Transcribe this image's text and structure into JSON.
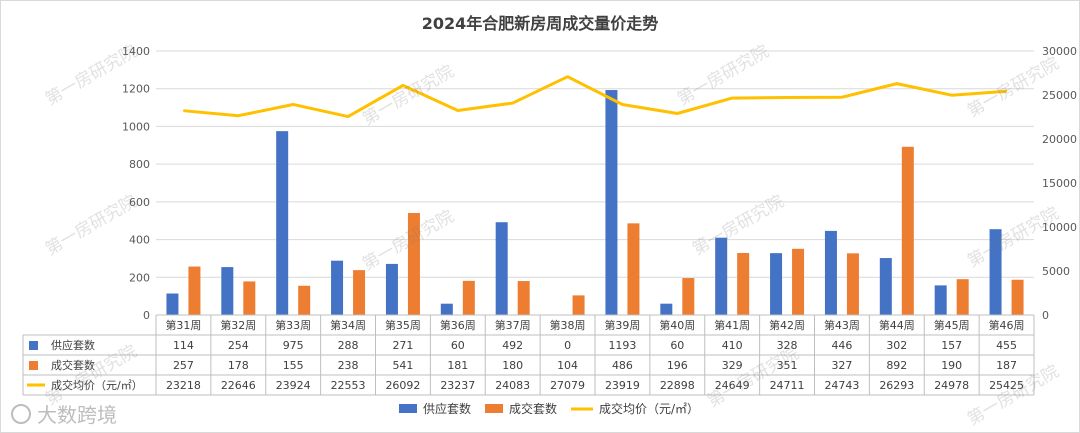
{
  "chart_data": {
    "type": "bar+line",
    "title": "2024年合肥新房周成交量价走势",
    "categories": [
      "第31周",
      "第32周",
      "第33周",
      "第34周",
      "第35周",
      "第36周",
      "第37周",
      "第38周",
      "第39周",
      "第40周",
      "第41周",
      "第42周",
      "第43周",
      "第44周",
      "第45周",
      "第46周"
    ],
    "series": [
      {
        "name": "供应套数",
        "kind": "bar",
        "axis": "left",
        "color": "#4472c4",
        "values": [
          114,
          254,
          975,
          288,
          271,
          60,
          492,
          0,
          1193,
          60,
          410,
          328,
          446,
          302,
          157,
          455
        ]
      },
      {
        "name": "成交套数",
        "kind": "bar",
        "axis": "left",
        "color": "#ed7d31",
        "values": [
          257,
          178,
          155,
          238,
          541,
          181,
          180,
          104,
          486,
          196,
          329,
          351,
          327,
          892,
          190,
          187
        ]
      },
      {
        "name": "成交均价（元/㎡）",
        "kind": "line",
        "axis": "right",
        "color": "#ffc000",
        "values": [
          23218,
          22646,
          23924,
          22553,
          26092,
          23237,
          24083,
          27079,
          23919,
          22898,
          24649,
          24711,
          24743,
          26293,
          24978,
          25425
        ]
      }
    ],
    "y_left": {
      "min": 0,
      "max": 1400,
      "ticks": [
        0,
        200,
        400,
        600,
        800,
        1000,
        1200,
        1400
      ]
    },
    "y_right": {
      "min": 0,
      "max": 30000,
      "ticks": [
        0,
        5000,
        10000,
        15000,
        20000,
        25000,
        30000
      ]
    },
    "grid": true,
    "legend_position": "bottom",
    "data_table": true
  },
  "watermark_text": "第一房研究院",
  "brand_text": "大数跨境"
}
